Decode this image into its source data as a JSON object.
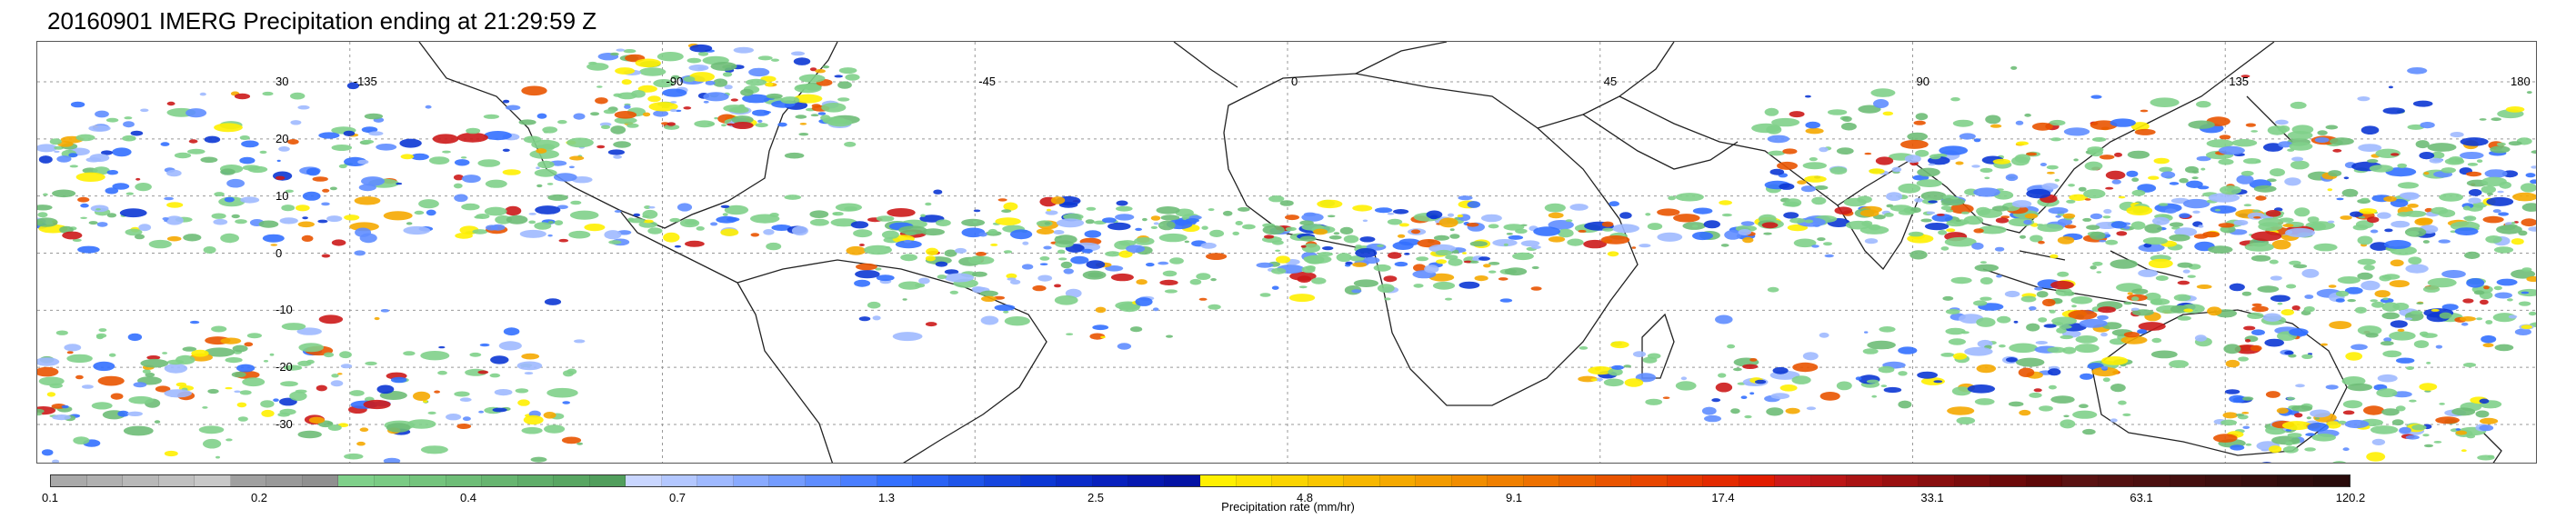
{
  "title": "20160901 IMERG Precipitation ending at 21:29:59 Z",
  "lon_labels": [
    "-135",
    "-90",
    "-45",
    "0",
    "45",
    "90",
    "135",
    "180"
  ],
  "lat_labels": [
    "30",
    "20",
    "10",
    "0",
    "-10",
    "-20",
    "-30"
  ],
  "colorbar": {
    "tick_labels": [
      "0.1",
      "0.2",
      "0.4",
      "0.7",
      "1.3",
      "2.5",
      "4.8",
      "9.1",
      "17.4",
      "33.1",
      "63.1",
      "120.2"
    ],
    "units_label": "Precipitation rate (mm/hr)",
    "colors": [
      "#a9a9a9",
      "#b0b0b0",
      "#b8b8b8",
      "#c0c0c0",
      "#c8c8c8",
      "#a0a0a0",
      "#999999",
      "#909090",
      "#7fd08a",
      "#7acb84",
      "#74c47d",
      "#6ebd77",
      "#67b570",
      "#5fad69",
      "#58a662",
      "#519e5c",
      "#c9d6ff",
      "#b3c7ff",
      "#9fb9ff",
      "#89aaff",
      "#749cff",
      "#5f8dff",
      "#4a7eff",
      "#3370ff",
      "#2a63f5",
      "#1f55ea",
      "#1646df",
      "#0c37d4",
      "#0a2bc9",
      "#0820bd",
      "#0618b0",
      "#0412a4",
      "#fff000",
      "#fde200",
      "#fbd400",
      "#f9c600",
      "#f7b700",
      "#f5a900",
      "#f39b00",
      "#f18d00",
      "#ef7f00",
      "#ed7100",
      "#eb6300",
      "#e95400",
      "#e74600",
      "#e53800",
      "#e32a00",
      "#e11c00",
      "#cc1a1a",
      "#bb1616",
      "#aa1313",
      "#991010",
      "#880e0e",
      "#7a0c0c",
      "#6c0a0a",
      "#5e0808",
      "#5a1212",
      "#531111",
      "#4c1010",
      "#450f0f",
      "#3e0e0e",
      "#370d0d",
      "#300c0c",
      "#290b0b"
    ]
  }
}
